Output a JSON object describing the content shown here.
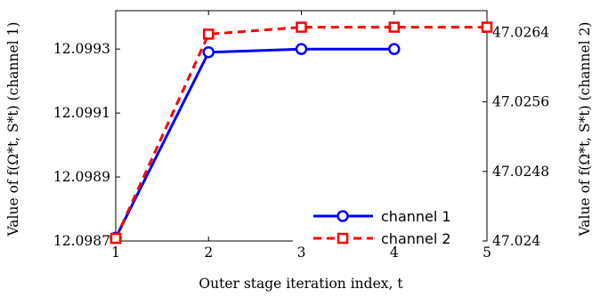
{
  "chart_data": {
    "type": "line",
    "xlabel": "Outer stage iteration index, t",
    "ylabel_left": "Value of f(Ω*t, S*t) (channel 1)",
    "ylabel_right": "Value of f(Ω*t, S*t) (channel 2)",
    "x_ticks": [
      1,
      2,
      3,
      4,
      5
    ],
    "x_tick_labels": [
      "1",
      "2",
      "3",
      "4",
      "5"
    ],
    "xlim": [
      1,
      5
    ],
    "ylim_left": [
      12.0987,
      12.09942
    ],
    "ylim_right": [
      47.024,
      47.02665
    ],
    "y_ticks_left": [
      12.0987,
      12.0989,
      12.0991,
      12.0993
    ],
    "y_tick_labels_left": [
      "12.0987",
      "12.0989",
      "12.0991",
      "12.0993"
    ],
    "y_ticks_right": [
      47.024,
      47.0248,
      47.0256,
      47.0264
    ],
    "y_tick_labels_right": [
      "47.024",
      "47.0248",
      "47.0256",
      "47.0264"
    ],
    "grid": false,
    "legend_position": "bottom-right",
    "series": [
      {
        "name": "channel 1",
        "axis": "left",
        "color": "#0000ff",
        "line_style": "solid",
        "marker": "circle",
        "x": [
          1,
          2,
          3,
          4
        ],
        "values": [
          12.09871,
          12.09929,
          12.0993,
          12.0993
        ]
      },
      {
        "name": "channel 2",
        "axis": "right",
        "color": "#ff0000",
        "line_style": "dashed",
        "marker": "square",
        "x": [
          1,
          2,
          3,
          4,
          5
        ],
        "values": [
          47.02403,
          47.02638,
          47.02646,
          47.02646,
          47.02646
        ]
      }
    ]
  }
}
